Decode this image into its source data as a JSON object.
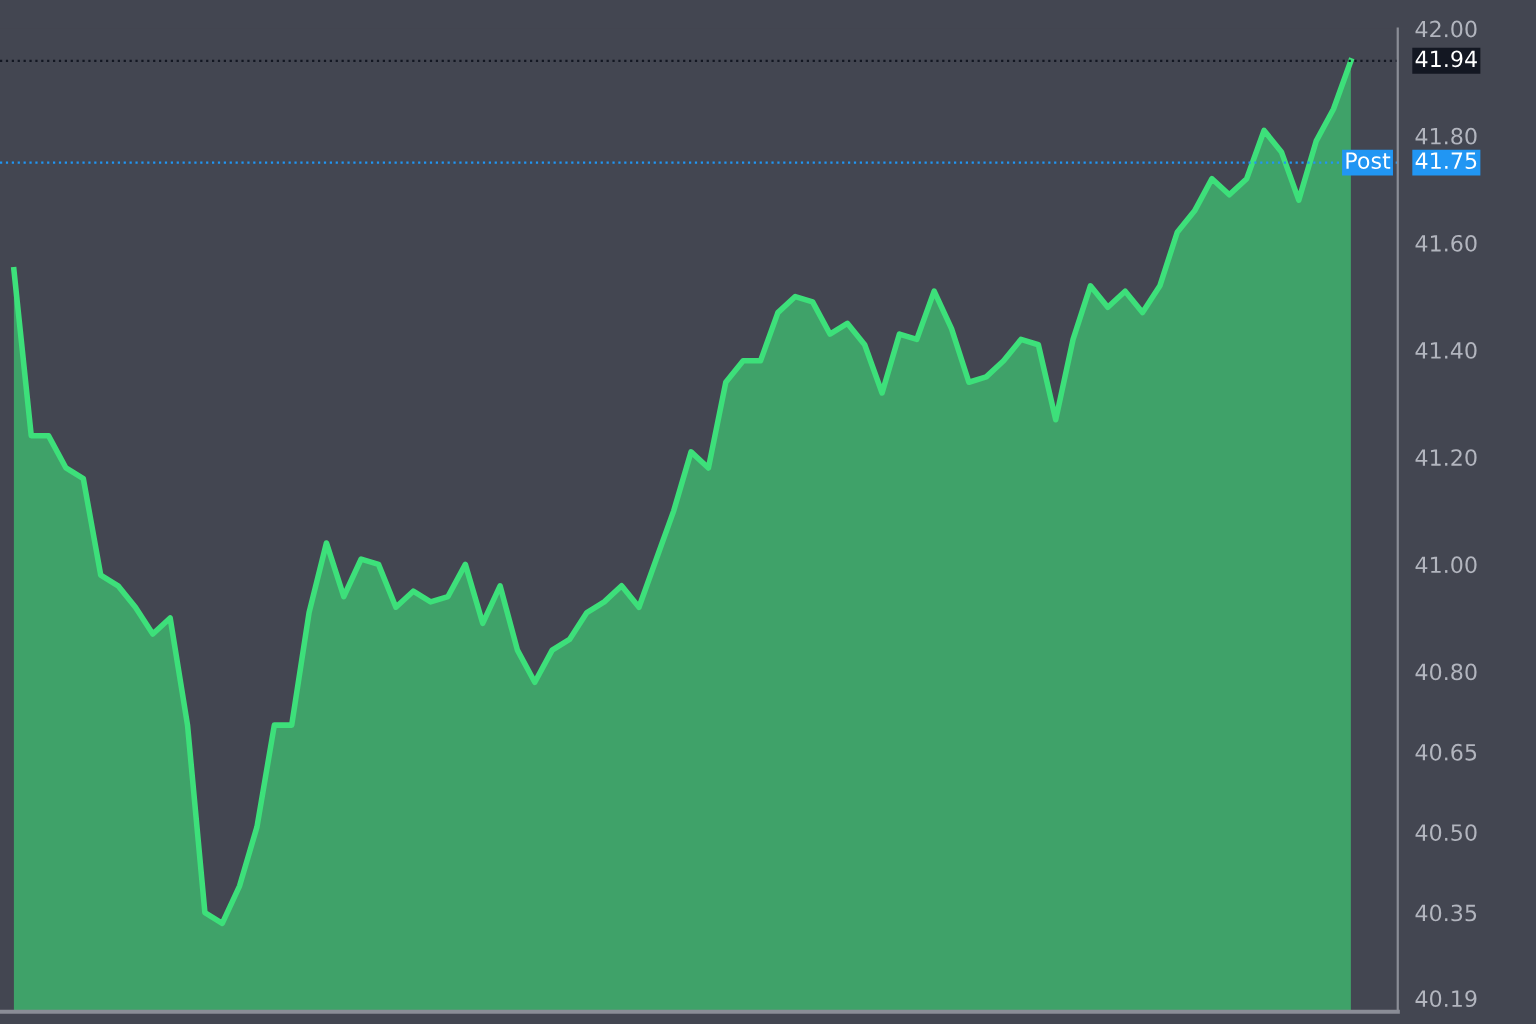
{
  "chart_data": {
    "type": "area",
    "categories": [
      null,
      null,
      null,
      null,
      null,
      null,
      null,
      null,
      null,
      null,
      null,
      null,
      null,
      null,
      null,
      null,
      null,
      null,
      null,
      null,
      null,
      null,
      null,
      null,
      null,
      null,
      null,
      null,
      null,
      null,
      null,
      null,
      null,
      null,
      null,
      null,
      null,
      null,
      null,
      null,
      null,
      null,
      null,
      null,
      null,
      null,
      null,
      null,
      null,
      null,
      null,
      null,
      null,
      null,
      null,
      null,
      null,
      null,
      null,
      null,
      null,
      null,
      null,
      null,
      null,
      null,
      null,
      null,
      null,
      null,
      null,
      null,
      null,
      null,
      null,
      null,
      null,
      null
    ],
    "series": [
      {
        "color": "#3de07a",
        "values": [
          41.55,
          41.24,
          41.24,
          41.18,
          41.16,
          40.98,
          40.96,
          40.92,
          40.87,
          40.9,
          40.7,
          40.35,
          40.33,
          40.4,
          40.51,
          40.7,
          40.7,
          40.91,
          41.04,
          40.94,
          41.01,
          41.0,
          40.92,
          40.95,
          40.93,
          40.94,
          41.0,
          40.89,
          40.96,
          40.84,
          40.78,
          40.84,
          40.86,
          40.91,
          40.93,
          40.96,
          40.92,
          41.01,
          41.1,
          41.21,
          41.18,
          41.34,
          41.38,
          41.38,
          41.47,
          41.5,
          41.49,
          41.43,
          41.45,
          41.41,
          41.32,
          41.43,
          41.42,
          41.51,
          41.44,
          41.34,
          41.35,
          41.38,
          41.42,
          41.41,
          41.27,
          41.42,
          41.52,
          41.48,
          41.51,
          41.47,
          41.52,
          41.62,
          41.66,
          41.72,
          41.69,
          41.72,
          41.81,
          41.77,
          41.68,
          41.79,
          41.85,
          41.94
        ]
      }
    ],
    "ylim": [
      40.165,
      42.0
    ],
    "yticks": [
      {
        "value": 42.0,
        "label": "42.00"
      },
      {
        "value": 41.8,
        "label": "41.80"
      },
      {
        "value": 41.6,
        "label": "41.60"
      },
      {
        "value": 41.4,
        "label": "41.40"
      },
      {
        "value": 41.2,
        "label": "41.20"
      },
      {
        "value": 41.0,
        "label": "41.00"
      },
      {
        "value": 40.8,
        "label": "40.80"
      },
      {
        "value": 40.65,
        "label": "40.65"
      },
      {
        "value": 40.5,
        "label": "40.50"
      },
      {
        "value": 40.35,
        "label": "40.35"
      },
      {
        "value": 40.19,
        "label": "40.19"
      }
    ],
    "ref_lines": [
      {
        "axis": "y",
        "value": 41.94,
        "label": "41.94",
        "color": "#131722"
      },
      {
        "axis": "y",
        "value": 41.75,
        "label": "41.75",
        "color": "#2196f3"
      }
    ],
    "annotations": [
      {
        "text": "Post",
        "y": 41.75
      }
    ],
    "tick_labels": "y",
    "grid": false,
    "legend": false
  }
}
